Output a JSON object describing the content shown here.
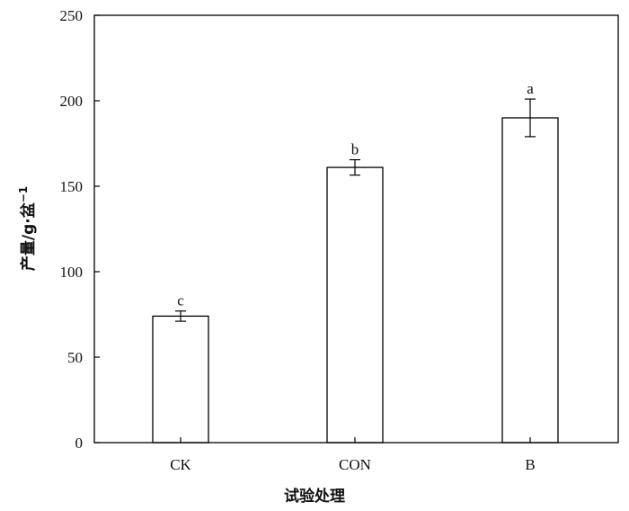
{
  "chart_data": {
    "type": "bar",
    "categories": [
      "CK",
      "CON",
      "B"
    ],
    "values": [
      74,
      161,
      190
    ],
    "error": [
      3,
      4.5,
      11
    ],
    "significance": [
      "c",
      "b",
      "a"
    ],
    "ylim": [
      0,
      250
    ],
    "yticks": [
      "0",
      "50",
      "100",
      "150",
      "200",
      "250"
    ],
    "xlabel": "试验处理",
    "ylabel": "产量/g·盆",
    "ylabel_sup": "−1",
    "grid": false,
    "legend": "none",
    "colors": {
      "bar_fill": "#ffffff",
      "stroke": "#000000"
    }
  }
}
